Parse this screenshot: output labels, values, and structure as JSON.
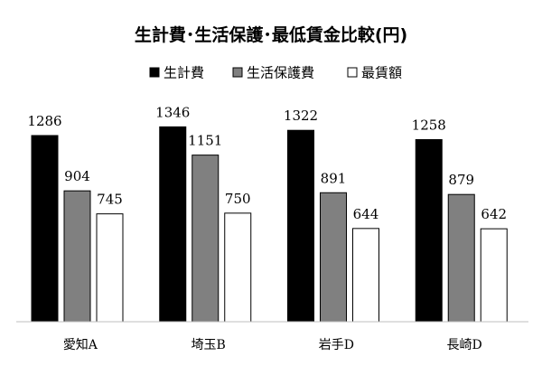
{
  "chart_data": {
    "type": "bar",
    "title": "生計費･生活保護･最低賃金比較(円)",
    "categories": [
      "愛知A",
      "埼玉B",
      "岩手D",
      "長崎D"
    ],
    "series": [
      {
        "name": "生計費",
        "values": [
          1286,
          1346,
          1322,
          1258
        ],
        "color": "#000000"
      },
      {
        "name": "生活保護費",
        "values": [
          904,
          1151,
          891,
          879
        ],
        "color": "#808080"
      },
      {
        "name": "最賃額",
        "values": [
          745,
          750,
          644,
          642
        ],
        "color": "#ffffff"
      }
    ],
    "xlabel": "",
    "ylabel": "",
    "ylim": [
      0,
      1400
    ],
    "grid": false,
    "legend": "top-center"
  }
}
